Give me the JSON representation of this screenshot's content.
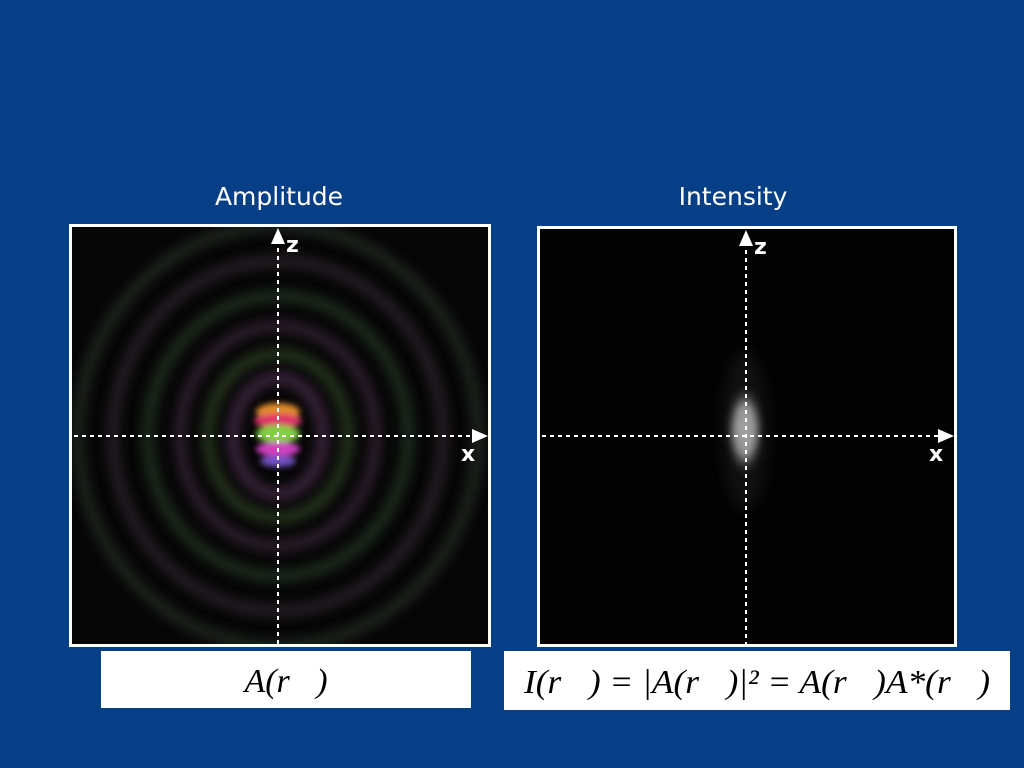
{
  "panels": [
    {
      "title": "Amplitude",
      "axis_z": "z",
      "axis_x": "x",
      "formula": "A(r⃗)"
    },
    {
      "title": "Intensity",
      "axis_z": "z",
      "axis_x": "x",
      "formula": "I(r⃗) = |A(r⃗)|² = A(r⃗)A*(r⃗)"
    }
  ]
}
